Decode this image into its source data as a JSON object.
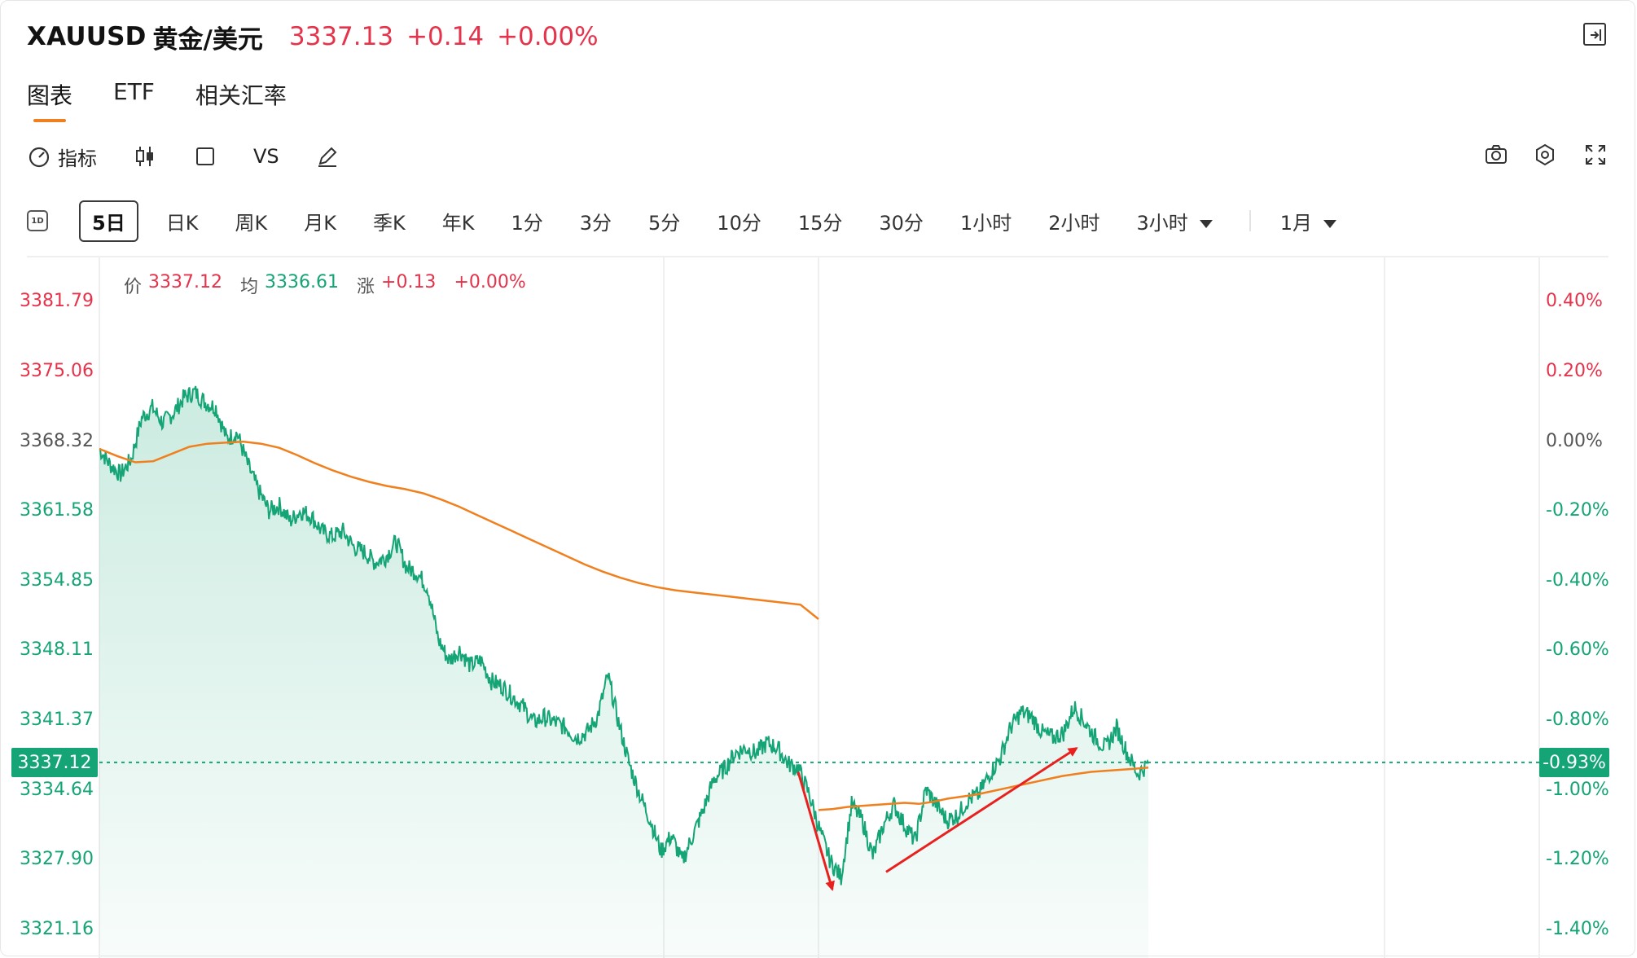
{
  "header": {
    "symbol": "XAUUSD",
    "name": "黄金/美元",
    "price": "3337.13",
    "change": "+0.14",
    "change_pct": "+0.00%"
  },
  "tabs": [
    {
      "label": "图表",
      "active": true
    },
    {
      "label": "ETF",
      "active": false
    },
    {
      "label": "相关汇率",
      "active": false
    }
  ],
  "toolbar": {
    "indicator_label": "指标",
    "vs_label": "VS",
    "icons": [
      "gauge-icon",
      "candlestick-icon",
      "square-icon",
      "pen-icon",
      "camera-icon",
      "settings-icon",
      "fullscreen-icon"
    ]
  },
  "periods": {
    "day_icon_label": "1D",
    "items": [
      "5日",
      "日K",
      "周K",
      "月K",
      "季K",
      "年K",
      "1分",
      "3分",
      "5分",
      "10分",
      "15分",
      "30分",
      "1小时",
      "2小时"
    ],
    "active": "5日",
    "dropdown_hour": "3小时",
    "dropdown_month": "1月"
  },
  "info": {
    "price_label": "价",
    "price_value": "3337.12",
    "avg_label": "均",
    "avg_value": "3336.61",
    "chg_label": "涨",
    "chg_value": "+0.13",
    "pct_value": "+0.00%"
  },
  "colors": {
    "up": "#e4334b",
    "down": "#14a476",
    "avg_line": "#f07f1d",
    "arrow": "#e8211f"
  },
  "chart_data": {
    "type": "line",
    "reference_price": 3368.32,
    "current_price_label": "3337.12",
    "current_pct_label": "-0.93%",
    "y_left_ticks": [
      "3381.79",
      "3375.06",
      "3368.32",
      "3361.58",
      "3354.85",
      "3348.11",
      "3341.37",
      "3334.64",
      "3327.90",
      "3321.16"
    ],
    "y_right_ticks": [
      "0.40%",
      "0.20%",
      "0.00%",
      "-0.20%",
      "-0.40%",
      "-0.60%",
      "-0.80%",
      "-1.00%",
      "-1.20%",
      "-1.40%"
    ],
    "ylim": [
      3321.16,
      3381.79
    ],
    "sessions": 5,
    "series": [
      {
        "name": "价",
        "values": [
          3367.5,
          3366.0,
          3365.0,
          3366.5,
          3370.5,
          3371.5,
          3370.0,
          3371.0,
          3372.5,
          3373.0,
          3372.0,
          3371.5,
          3368.5,
          3369.0,
          3366.0,
          3363.5,
          3361.5,
          3362.0,
          3360.5,
          3361.5,
          3361.0,
          3359.5,
          3359.0,
          3359.5,
          3358.0,
          3357.5,
          3356.5,
          3357.0,
          3358.5,
          3356.0,
          3355.5,
          3354.0,
          3349.0,
          3347.0,
          3348.0,
          3346.5,
          3347.0,
          3345.0,
          3344.5,
          3343.5,
          3342.5,
          3341.0,
          3341.5,
          3341.0,
          3340.5,
          3339.5,
          3340.0,
          3341.5,
          3345.5,
          3341.0,
          3337.0,
          3334.0,
          3331.5,
          3328.5,
          3330.0,
          3327.5,
          3330.0,
          3332.5,
          3335.5,
          3336.5,
          3338.0,
          3338.5,
          3338.0,
          3339.0,
          3338.5,
          3337.0,
          3336.5,
          3334.0,
          3330.5,
          3327.5,
          3326.0,
          3333.0,
          3331.5,
          3328.0,
          3331.0,
          3333.0,
          3331.0,
          3329.5,
          3334.5,
          3333.0,
          3331.5,
          3332.0,
          3333.5,
          3334.0,
          3336.0,
          3337.5,
          3340.5,
          3342.0,
          3341.5,
          3340.0,
          3339.5,
          3340.0,
          3342.5,
          3341.0,
          3339.5,
          3338.5,
          3340.5,
          3338.0,
          3336.0,
          3337.0
        ]
      },
      {
        "name": "均",
        "values": [
          3367.5,
          3366.8,
          3366.2,
          3366.3,
          3367.0,
          3367.7,
          3368.0,
          3368.1,
          3368.2,
          3368.0,
          3367.6,
          3366.9,
          3366.1,
          3365.4,
          3364.8,
          3364.3,
          3363.9,
          3363.6,
          3363.2,
          3362.6,
          3361.9,
          3361.1,
          3360.3,
          3359.5,
          3358.7,
          3357.9,
          3357.1,
          3356.3,
          3355.6,
          3355.0,
          3354.5,
          3354.1,
          3353.8,
          3353.6,
          3353.4,
          3353.2,
          3353.0,
          3352.8,
          3352.6,
          3352.4,
          3351.0,
          3332.5,
          3332.6,
          3332.8,
          3332.9,
          3333.0,
          3333.1,
          3333.2,
          3333.1,
          3333.3,
          3333.6,
          3333.8,
          3334.0,
          3334.3,
          3334.6,
          3334.9,
          3335.2,
          3335.5,
          3335.8,
          3336.0,
          3336.2,
          3336.3,
          3336.4,
          3336.5,
          3336.61
        ]
      }
    ],
    "annotations": [
      {
        "type": "arrow",
        "from": [
          3336.2,
          "session-4-start"
        ],
        "to": [
          3324.8,
          "session-4-early"
        ],
        "color": "#e8211f"
      },
      {
        "type": "arrow",
        "from": [
          3326.5,
          "session-4-mid"
        ],
        "to": [
          3338.5,
          "session-5-early"
        ],
        "color": "#e8211f"
      }
    ]
  }
}
